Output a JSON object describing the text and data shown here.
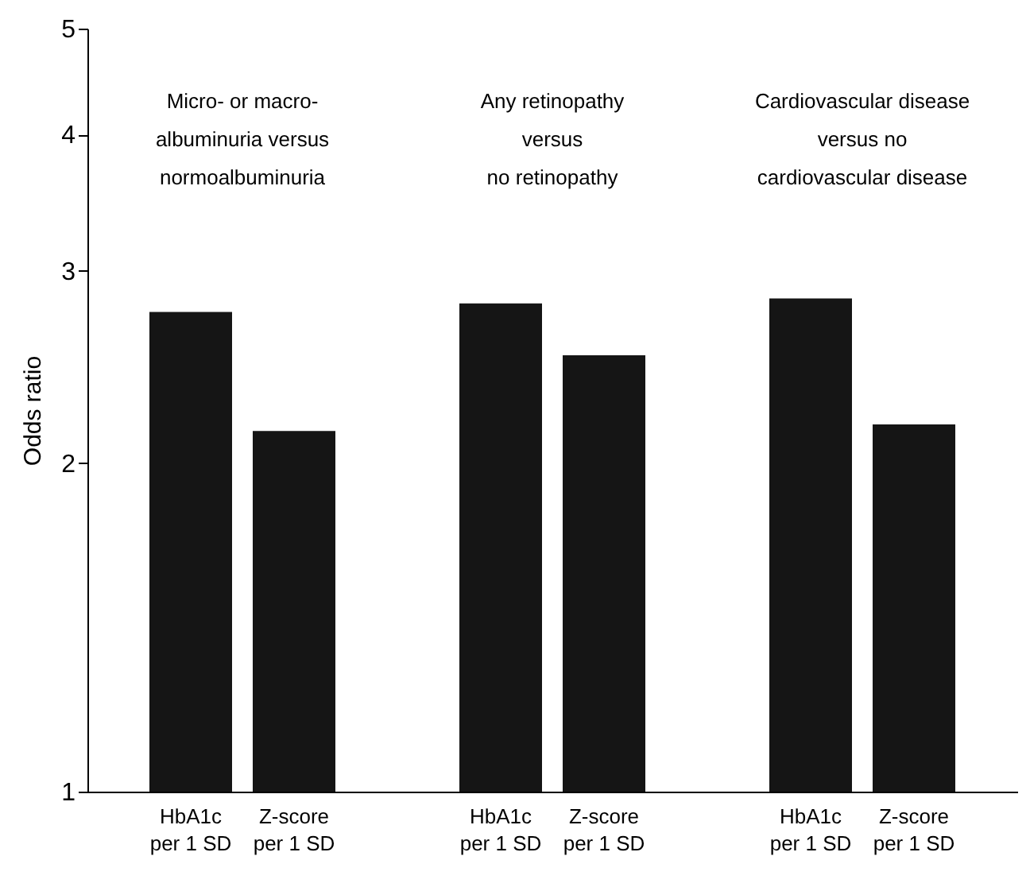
{
  "chart_data": {
    "type": "bar",
    "ylabel": "Odds ratio",
    "categories": [
      "HbA1c\nper 1 SD",
      "Z-score\nper 1 SD",
      "HbA1c\nper 1 SD",
      "Z-score\nper 1 SD",
      "HbA1c\nper 1 SD",
      "Z-score\nper 1 SD"
    ],
    "values": [
      2.75,
      2.14,
      2.8,
      2.51,
      2.83,
      2.17
    ],
    "color": "#151515",
    "log": "y",
    "ylim": [
      1,
      5
    ],
    "yticks": [
      1,
      2,
      3,
      4,
      5
    ],
    "grid": false,
    "annotations": [
      "Micro- or macro-\nalbuminuria versus\nnormoalbuminuria",
      "Any retinopathy\nversus\nno retinopathy",
      "Cardiovascular disease\nversus no\ncardiovascular disease"
    ]
  }
}
